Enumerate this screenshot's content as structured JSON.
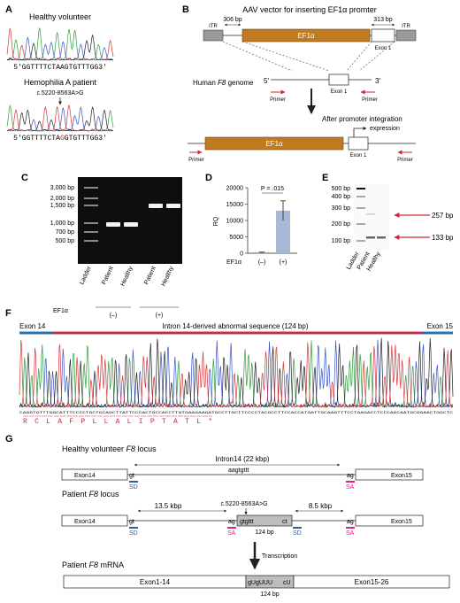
{
  "panels": {
    "A": "A",
    "B": "B",
    "C": "C",
    "D": "D",
    "E": "E",
    "F": "F",
    "G": "G"
  },
  "panel_a": {
    "healthy_label": "Healthy volunteer",
    "healthy_seq": "5'GGTTTTCTAAGTGTTTGG3'",
    "patient_label": "Hemophilia A patient",
    "mutation": "c.5220-8563A>G",
    "patient_seq_prefix": "5'GGTTTTCTA",
    "patient_seq_mut": "G",
    "patient_seq_suffix": "GTGTTTGG3'"
  },
  "panel_b": {
    "title": "AAV vector for inserting EF1α promter",
    "itr": "ITR",
    "bp_left": "306 bp",
    "bp_right": "313 bp",
    "ef1a": "EF1α",
    "exon1": "Exon 1",
    "genome_prefix": "Human ",
    "genome_gene": "F8",
    "genome_suffix": " genome",
    "five": "5'",
    "three": "3'",
    "primer": "Primer",
    "after": "After promoter integration",
    "expression": "expression"
  },
  "panel_c": {
    "ladder": [
      "3,000 bp",
      "2,000 bp",
      "1,500 bp",
      "1,000 bp",
      "700 bp",
      "500 bp"
    ],
    "lanes": [
      "Ladder",
      "Patient",
      "Healthy",
      "Patient",
      "Healthy"
    ],
    "ef1a_label": "EF1α",
    "minus": "(–)",
    "plus": "(+)"
  },
  "panel_d": {
    "ylabel": "RQ",
    "pvalue": "P = .015",
    "xlabel": "EF1α",
    "minus": "(–)",
    "plus": "(+)"
  },
  "chart_data": {
    "type": "bar",
    "categories": [
      "(–)",
      "(+)"
    ],
    "values": [
      200,
      13000
    ],
    "errors": [
      150,
      3000
    ],
    "ylabel": "RQ",
    "ylim": [
      0,
      20000
    ],
    "yticks": [
      "0",
      "5000",
      "10000",
      "15000",
      "20000"
    ],
    "annotation": "P = .015",
    "colors": {
      "bar": "#aab8d8",
      "minus_mark": "#e0a030"
    }
  },
  "panel_e": {
    "ladder": [
      "500 bp",
      "400 bp",
      "300 bp",
      "200 bp",
      "100 bp"
    ],
    "lanes": [
      "Ladder",
      "Patient",
      "Healthy"
    ],
    "band1": "257 bp",
    "band2": "133 bp"
  },
  "panel_f": {
    "exon14": "Exon 14",
    "exon15": "Exon 15",
    "intron": "Intron 14-derived abnormal sequence (124 bp)",
    "dna": "CAGGTGTTTGGCATTTCCCCTGCTGCAGCTTATTCCCACTGCCACCTTGTGAAGAAGATGCCTTGCTTCCCCTACGCCTTCCACCATGATTGCAAGTTTCCTGAGACCTCCCAGCAATGCGGAACTGGCTC",
    "aa": "R C L A F P L L A L I P T A T L *"
  },
  "panel_g": {
    "healthy_prefix": "Healthy volunteer ",
    "healthy_gene": "F8",
    "healthy_suffix": " locus",
    "intron": "Intron14 (22 kbp)",
    "exon14": "Exon14",
    "exon15": "Exon15",
    "gt": "gt",
    "ag": "ag",
    "aagtgttt": "aagtgttt",
    "sd": "SD",
    "sa": "SA",
    "patient_prefix": "Patient ",
    "patient_gene": "F8",
    "patient_suffix": " locus",
    "kbp_left": "13.5 kbp",
    "kbp_right": "8.5 kbp",
    "mutation": "c.5220-8563A>G",
    "gtgttt": "gtgttt",
    "ct": "ct",
    "len": "124 bp",
    "transcription": "Transcription",
    "mrna_prefix": "Patient ",
    "mrna_gene": "F8",
    "mrna_suffix": " mRNA",
    "exon1_14": "Exon1-14",
    "exon15_26": "Exon15-26",
    "guguuu": "gUgUUU",
    "cu": "cU"
  },
  "colors": {
    "ef1a": "#c07a20",
    "primer": "#d0253a",
    "sd": "#2c5fa8",
    "sa": "#e0207a",
    "intron_bar": "#c03050",
    "exon_bar": "#2f6fb3",
    "mutation": "#d0253a"
  }
}
